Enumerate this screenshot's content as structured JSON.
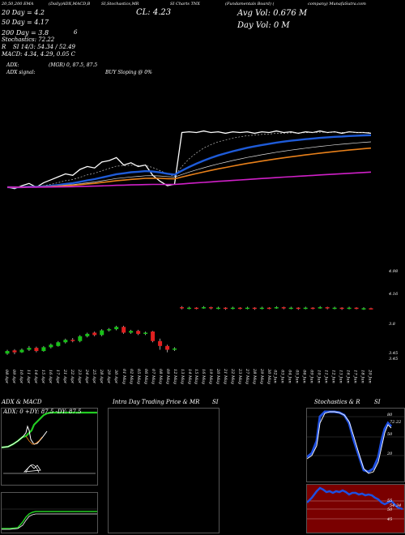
{
  "header": {
    "line1_left": "20,50,200 EMA",
    "line1_mid": "(Daily)ADX,MACD,B",
    "line1_mid2": "SI,Stochastics,MR",
    "line1_right": "SI Charts TNX",
    "line1_right2": "(Fundamentals    Board)  (",
    "line1_right3": "company) MunafaSutra.com",
    "cl_label": "CL: 4.23",
    "ma20": "20  Day = 4.2",
    "ma50": "50  Day = 4.17",
    "ma200": "200  Day = 3.8",
    "count6": "6",
    "stoch": "Stochastics: 72.22",
    "r_line": "R",
    "si_line": "SI 14/3: 54.34  / 52.49",
    "macd": "MACD: 4.34, 4.29, 0.05 C",
    "avg_vol": "Avg Vol: 0.676   M",
    "day_vol": "Day Vol: 0   M",
    "adx_label": "ADX:",
    "adx_signal_label": "ADX  signal:",
    "adx_values": "(MGR) 0, 87.5,  87.5",
    "buy_signal": "BUY Sloping @ 0%"
  },
  "price_labels": [
    "4.98",
    "4.16",
    "3.8",
    "3.45",
    "3.45"
  ],
  "date_labels": [
    "08 Apr",
    "09 Apr",
    "10 Apr",
    "11 Apr",
    "14 Apr",
    "15 Apr",
    "16 Apr",
    "17 Apr",
    "21 Apr",
    "22 Apr",
    "23 Apr",
    "24 Apr",
    "25 Apr",
    "28 Apr",
    "29 Apr",
    "30 Apr",
    "01 May",
    "02 May",
    "05 May",
    "06 May",
    "07 May",
    "08 May",
    "09 May",
    "12 May",
    "13 May",
    "14 May",
    "15 May",
    "16 May",
    "19 May",
    "20 May",
    "21 May",
    "22 May",
    "23 May",
    "27 May",
    "28 May",
    "29 May",
    "30 May",
    "02 Jun",
    "03 Jun",
    "04 Jun",
    "05 Jun",
    "06 Jun",
    "09 Jun",
    "10 Jun",
    "11 Jun",
    "12 Jun",
    "13 Jun",
    "16 Jun",
    "17 Jun",
    "18 Jun",
    "20 Jun"
  ],
  "panels": {
    "adx_title": "ADX  & MACD",
    "adx_readout": "ADX: 0   +DY: 87.5   -DY: 87.5",
    "intraday_title": "Intra  Day Trading Price  & MR",
    "intraday_si": "SI",
    "stoch_title": "Stochastics & R",
    "stoch_si": "SI",
    "stoch_ticks": [
      "80",
      "50",
      "20"
    ],
    "stoch_value": "72.22",
    "rsi_ticks": [
      "55",
      "50",
      "45"
    ],
    "rsi_value": "54.34"
  },
  "colors": {
    "background": "#000000",
    "ema20": "#1e5bd8",
    "ema50": "#e8801a",
    "ema200": "#d020c8",
    "price_line": "#ffffff",
    "bull_candle": "#18c018",
    "bear_candle": "#e02020",
    "adx_plus": "#22cc22",
    "stoch_line": "#1e4fe0",
    "rsi_fill": "#7a0000"
  },
  "chart_data": {
    "type": "candlestick",
    "y_scale": "log",
    "price_axis_labels": [
      4.98,
      4.16,
      3.8,
      3.45
    ],
    "candles": [
      {
        "date": "08 Apr",
        "open": 3.46,
        "close": 3.5,
        "high": 3.52,
        "low": 3.44
      },
      {
        "date": "09 Apr",
        "open": 3.51,
        "close": 3.48,
        "high": 3.53,
        "low": 3.45
      },
      {
        "date": "10 Apr",
        "open": 3.48,
        "close": 3.52,
        "high": 3.54,
        "low": 3.47
      },
      {
        "date": "11 Apr",
        "open": 3.52,
        "close": 3.55,
        "high": 3.58,
        "low": 3.5
      },
      {
        "date": "14 Apr",
        "open": 3.55,
        "close": 3.5,
        "high": 3.57,
        "low": 3.48
      },
      {
        "date": "15 Apr",
        "open": 3.5,
        "close": 3.56,
        "high": 3.58,
        "low": 3.49
      },
      {
        "date": "16 Apr",
        "open": 3.56,
        "close": 3.6,
        "high": 3.62,
        "low": 3.54
      },
      {
        "date": "17 Apr",
        "open": 3.58,
        "close": 3.64,
        "high": 3.66,
        "low": 3.57
      },
      {
        "date": "21 Apr",
        "open": 3.64,
        "close": 3.68,
        "high": 3.7,
        "low": 3.62
      },
      {
        "date": "22 Apr",
        "open": 3.68,
        "close": 3.66,
        "high": 3.71,
        "low": 3.64
      },
      {
        "date": "23 Apr",
        "open": 3.66,
        "close": 3.74,
        "high": 3.76,
        "low": 3.64
      },
      {
        "date": "24 Apr",
        "open": 3.74,
        "close": 3.78,
        "high": 3.8,
        "low": 3.72
      },
      {
        "date": "25 Apr",
        "open": 3.8,
        "close": 3.76,
        "high": 3.82,
        "low": 3.74
      },
      {
        "date": "28 Apr",
        "open": 3.76,
        "close": 3.84,
        "high": 3.86,
        "low": 3.74
      },
      {
        "date": "29 Apr",
        "open": 3.84,
        "close": 3.86,
        "high": 3.88,
        "low": 3.82
      },
      {
        "date": "30 Apr",
        "open": 3.86,
        "close": 3.9,
        "high": 3.92,
        "low": 3.84
      },
      {
        "date": "01 May",
        "open": 3.9,
        "close": 3.8,
        "high": 3.92,
        "low": 3.78
      },
      {
        "date": "02 May",
        "open": 3.8,
        "close": 3.83,
        "high": 3.85,
        "low": 3.78
      },
      {
        "date": "05 May",
        "open": 3.83,
        "close": 3.78,
        "high": 3.85,
        "low": 3.76
      },
      {
        "date": "06 May",
        "open": 3.78,
        "close": 3.8,
        "high": 3.82,
        "low": 3.76
      },
      {
        "date": "07 May",
        "open": 3.82,
        "close": 3.66,
        "high": 3.83,
        "low": 3.64
      },
      {
        "date": "08 May",
        "open": 3.66,
        "close": 3.58,
        "high": 3.7,
        "low": 3.52
      },
      {
        "date": "09 May",
        "open": 3.58,
        "close": 3.52,
        "high": 3.6,
        "low": 3.48
      },
      {
        "date": "12 May",
        "open": 3.52,
        "close": 3.54,
        "high": 3.56,
        "low": 3.5
      },
      {
        "date": "13 May",
        "open": 4.26,
        "close": 4.24,
        "high": 4.28,
        "low": 4.22
      },
      {
        "date": "14 May",
        "open": 4.24,
        "close": 4.25,
        "high": 4.27,
        "low": 4.22
      },
      {
        "date": "15 May",
        "open": 4.25,
        "close": 4.24,
        "high": 4.26,
        "low": 4.22
      },
      {
        "date": "16 May",
        "open": 4.24,
        "close": 4.26,
        "high": 4.28,
        "low": 4.23
      },
      {
        "date": "19 May",
        "open": 4.26,
        "close": 4.24,
        "high": 4.27,
        "low": 4.22
      },
      {
        "date": "20 May",
        "open": 4.24,
        "close": 4.25,
        "high": 4.27,
        "low": 4.22
      },
      {
        "date": "21 May",
        "open": 4.25,
        "close": 4.23,
        "high": 4.26,
        "low": 4.21
      },
      {
        "date": "22 May",
        "open": 4.23,
        "close": 4.25,
        "high": 4.27,
        "low": 4.22
      },
      {
        "date": "23 May",
        "open": 4.25,
        "close": 4.24,
        "high": 4.26,
        "low": 4.22
      },
      {
        "date": "27 May",
        "open": 4.24,
        "close": 4.25,
        "high": 4.27,
        "low": 4.22
      },
      {
        "date": "28 May",
        "open": 4.25,
        "close": 4.23,
        "high": 4.26,
        "low": 4.21
      },
      {
        "date": "29 May",
        "open": 4.23,
        "close": 4.25,
        "high": 4.27,
        "low": 4.22
      },
      {
        "date": "30 May",
        "open": 4.25,
        "close": 4.24,
        "high": 4.26,
        "low": 4.22
      },
      {
        "date": "02 Jun",
        "open": 4.24,
        "close": 4.26,
        "high": 4.28,
        "low": 4.23
      },
      {
        "date": "03 Jun",
        "open": 4.26,
        "close": 4.24,
        "high": 4.27,
        "low": 4.22
      },
      {
        "date": "04 Jun",
        "open": 4.24,
        "close": 4.25,
        "high": 4.27,
        "low": 4.22
      },
      {
        "date": "05 Jun",
        "open": 4.25,
        "close": 4.23,
        "high": 4.26,
        "low": 4.21
      },
      {
        "date": "06 Jun",
        "open": 4.23,
        "close": 4.25,
        "high": 4.27,
        "low": 4.22
      },
      {
        "date": "09 Jun",
        "open": 4.25,
        "close": 4.24,
        "high": 4.26,
        "low": 4.22
      },
      {
        "date": "10 Jun",
        "open": 4.24,
        "close": 4.26,
        "high": 4.28,
        "low": 4.23
      },
      {
        "date": "11 Jun",
        "open": 4.26,
        "close": 4.24,
        "high": 4.27,
        "low": 4.22
      },
      {
        "date": "12 Jun",
        "open": 4.24,
        "close": 4.25,
        "high": 4.27,
        "low": 4.22
      },
      {
        "date": "13 Jun",
        "open": 4.25,
        "close": 4.23,
        "high": 4.26,
        "low": 4.21
      },
      {
        "date": "16 Jun",
        "open": 4.23,
        "close": 4.25,
        "high": 4.27,
        "low": 4.22
      },
      {
        "date": "17 Jun",
        "open": 4.25,
        "close": 4.24,
        "high": 4.26,
        "low": 4.22
      },
      {
        "date": "18 Jun",
        "open": 4.22,
        "close": 4.24,
        "high": 4.26,
        "low": 4.21
      },
      {
        "date": "20 Jun",
        "open": 4.24,
        "close": 4.23,
        "high": 4.25,
        "low": 4.22
      }
    ]
  }
}
